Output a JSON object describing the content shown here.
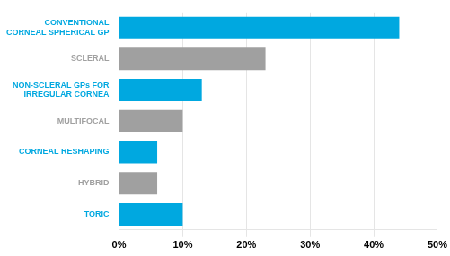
{
  "chart_data": {
    "type": "bar",
    "orientation": "horizontal",
    "categories": [
      "TORIC",
      "HYBRID",
      "CORNEAL RESHAPING",
      "MULTIFOCAL",
      "NON-SCLERAL GPs FOR\nIRREGULAR CORNEA",
      "SCLERAL",
      "CONVENTIONAL\nCORNEAL SPHERICAL GP"
    ],
    "values": [
      10,
      6,
      6,
      10,
      13,
      23,
      44
    ],
    "colors": [
      "#00a8e0",
      "#a0a0a0",
      "#00a8e0",
      "#a0a0a0",
      "#00a8e0",
      "#a0a0a0",
      "#00a8e0"
    ],
    "xlim": [
      0,
      50
    ],
    "xticks": [
      {
        "value": 0,
        "label": "0%"
      },
      {
        "value": 10,
        "label": "10%"
      },
      {
        "value": 20,
        "label": "20%"
      },
      {
        "value": 30,
        "label": "30%"
      },
      {
        "value": 40,
        "label": "40%"
      },
      {
        "value": 50,
        "label": "50%"
      }
    ],
    "grid": true
  }
}
